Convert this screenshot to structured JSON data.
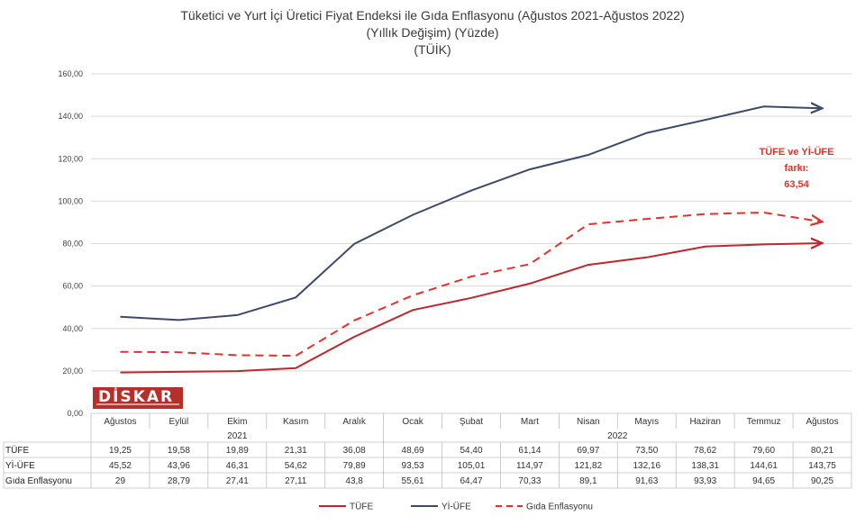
{
  "title_lines": [
    "Tüketici ve Yurt İçi Üretici Fiyat Endeksi ile Gıda Enflasyonu (Ağustos 2021-Ağustos 2022)",
    "(Yıllık Değişim) (Yüzde)",
    "(TÜİK)"
  ],
  "logo": {
    "text": "DİSKAR"
  },
  "annotation": {
    "lines": [
      "TÜFE ve Yİ-ÜFE",
      "farkı:",
      "63,54"
    ]
  },
  "chart_data": {
    "type": "line",
    "categories": [
      "Ağustos",
      "Eylül",
      "Ekim",
      "Kasım",
      "Aralık",
      "Ocak",
      "Şubat",
      "Mart",
      "Nisan",
      "Mayıs",
      "Haziran",
      "Temmuz",
      "Ağustos"
    ],
    "year_groups": [
      {
        "label": "2021",
        "start": 0,
        "end": 4
      },
      {
        "label": "2022",
        "start": 5,
        "end": 12
      }
    ],
    "ylim": [
      0,
      160
    ],
    "yticks": [
      "0,00",
      "20,00",
      "40,00",
      "60,00",
      "80,00",
      "100,00",
      "120,00",
      "140,00",
      "160,00"
    ],
    "grid": true,
    "legend_placement": "bottom",
    "series": [
      {
        "name": "TÜFE",
        "color": "#c0262c",
        "style": "solid",
        "values": [
          19.25,
          19.58,
          19.89,
          21.31,
          36.08,
          48.69,
          54.4,
          61.14,
          69.97,
          73.5,
          78.62,
          79.6,
          80.21
        ],
        "labels": [
          "19,25",
          "19,58",
          "19,89",
          "21,31",
          "36,08",
          "48,69",
          "54,40",
          "61,14",
          "69,97",
          "73,50",
          "78,62",
          "79,60",
          "80,21"
        ]
      },
      {
        "name": "Yİ-ÜFE",
        "color": "#3e4a6b",
        "style": "solid",
        "values": [
          45.52,
          43.96,
          46.31,
          54.62,
          79.89,
          93.53,
          105.01,
          114.97,
          121.82,
          132.16,
          138.31,
          144.61,
          143.75
        ],
        "labels": [
          "45,52",
          "43,96",
          "46,31",
          "54,62",
          "79,89",
          "93,53",
          "105,01",
          "114,97",
          "121,82",
          "132,16",
          "138,31",
          "144,61",
          "143,75"
        ]
      },
      {
        "name": "Gıda Enflasyonu",
        "color": "#e8302a",
        "style": "dashed",
        "values": [
          29,
          28.79,
          27.41,
          27.11,
          43.8,
          55.61,
          64.47,
          70.33,
          89.1,
          91.63,
          93.93,
          94.65,
          90.25
        ],
        "labels": [
          "29",
          "28,79",
          "27,41",
          "27,11",
          "43,8",
          "55,61",
          "64,47",
          "70,33",
          "89,1",
          "91,63",
          "93,93",
          "94,65",
          "90,25"
        ]
      }
    ]
  }
}
